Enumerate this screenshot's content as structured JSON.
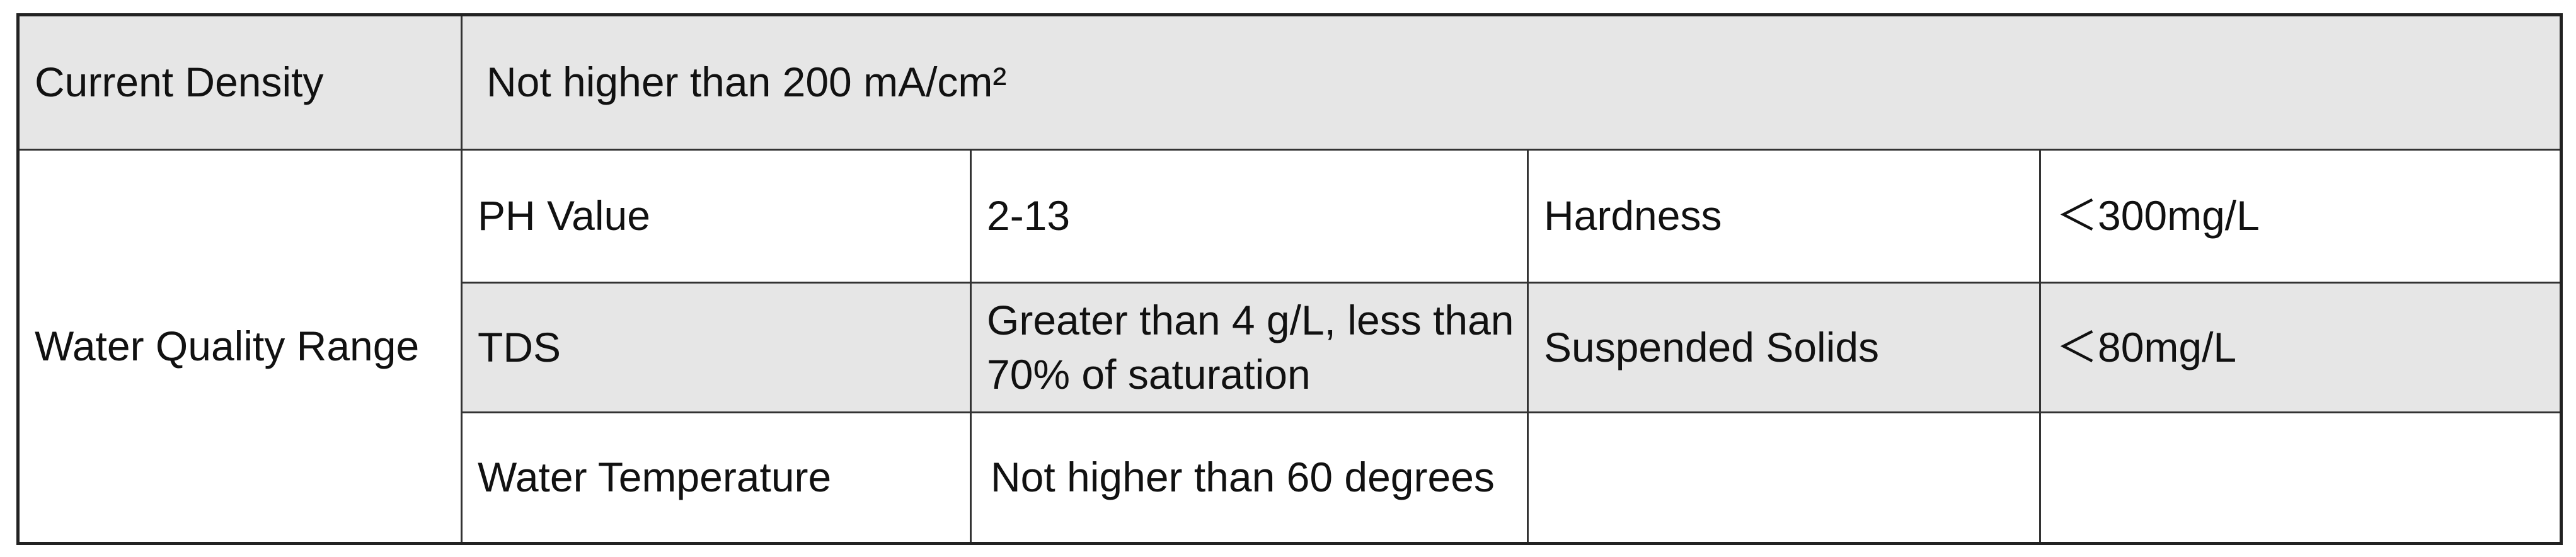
{
  "table": {
    "rows": [
      [
        "Current Density",
        "Not higher than 200 mA/cm²"
      ],
      [
        "Water Quality Range",
        "PH Value",
        "2-13",
        "Hardness",
        "＜300mg/L"
      ],
      [
        "TDS",
        "Greater than 4 g/L, less than 70% of saturation",
        "Suspended Solids",
        "＜80mg/L"
      ],
      [
        "Water Temperature",
        "Not higher than 60 degrees"
      ]
    ]
  }
}
